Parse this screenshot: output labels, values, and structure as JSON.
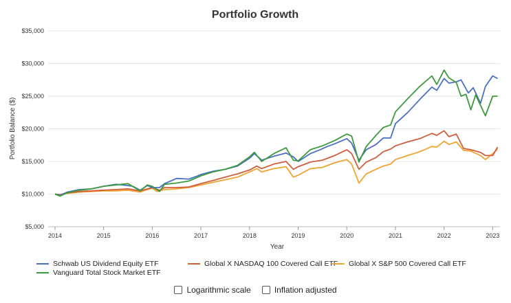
{
  "chart_data": {
    "type": "line",
    "title": "Portfolio Growth",
    "xlabel": "Year",
    "ylabel": "Portfolio Balance ($)",
    "xlim": [
      2014.0,
      2023.15
    ],
    "ylim": [
      5000,
      35000
    ],
    "y_ticks": [
      "$5,000",
      "$10,000",
      "$15,000",
      "$20,000",
      "$25,000",
      "$30,000",
      "$35,000"
    ],
    "x_ticks": [
      "2014",
      "2015",
      "2016",
      "2017",
      "2018",
      "2019",
      "2020",
      "2021",
      "2022",
      "2023"
    ],
    "grid": "horizontal",
    "legend_position": "bottom",
    "series": [
      {
        "name": "Schwab US Dividend Equity ETF",
        "color": "#4a6fc7",
        "x": [
          2014.0,
          2014.1,
          2014.25,
          2014.5,
          2014.75,
          2015.0,
          2015.25,
          2015.4,
          2015.6,
          2015.75,
          2015.9,
          2016.0,
          2016.15,
          2016.25,
          2016.5,
          2016.75,
          2016.9,
          2017.0,
          2017.25,
          2017.5,
          2017.75,
          2018.0,
          2018.1,
          2018.25,
          2018.5,
          2018.75,
          2018.9,
          2019.0,
          2019.25,
          2019.45,
          2019.6,
          2019.75,
          2020.0,
          2020.1,
          2020.25,
          2020.4,
          2020.6,
          2020.75,
          2020.9,
          2021.0,
          2021.25,
          2021.5,
          2021.75,
          2021.85,
          2022.0,
          2022.1,
          2022.25,
          2022.35,
          2022.5,
          2022.6,
          2022.75,
          2022.85,
          2023.0,
          2023.1
        ],
        "y": [
          10000,
          9800,
          10300,
          10700,
          10800,
          11200,
          11500,
          11400,
          11200,
          10600,
          11300,
          11000,
          11000,
          11600,
          12400,
          12300,
          12700,
          13000,
          13500,
          13800,
          14300,
          15500,
          16200,
          15200,
          15800,
          16300,
          15700,
          15000,
          16200,
          16800,
          17300,
          17700,
          18500,
          17800,
          15200,
          16800,
          17600,
          18600,
          18600,
          20800,
          22500,
          24500,
          26400,
          25900,
          27700,
          27000,
          27200,
          27500,
          25500,
          26300,
          23900,
          26500,
          28100,
          27700
        ]
      },
      {
        "name": "Global X NASDAQ 100 Covered Call ETF",
        "color": "#d05d3b",
        "x": [
          2014.0,
          2014.1,
          2014.25,
          2014.5,
          2014.75,
          2015.0,
          2015.25,
          2015.5,
          2015.75,
          2015.9,
          2016.0,
          2016.15,
          2016.25,
          2016.5,
          2016.75,
          2017.0,
          2017.25,
          2017.5,
          2017.75,
          2018.0,
          2018.15,
          2018.25,
          2018.5,
          2018.75,
          2018.9,
          2019.0,
          2019.25,
          2019.5,
          2019.75,
          2020.0,
          2020.1,
          2020.25,
          2020.4,
          2020.6,
          2020.75,
          2020.9,
          2021.0,
          2021.25,
          2021.5,
          2021.75,
          2021.85,
          2022.0,
          2022.1,
          2022.25,
          2022.4,
          2022.55,
          2022.75,
          2022.85,
          2023.0,
          2023.1
        ],
        "y": [
          10000,
          9900,
          10200,
          10400,
          10500,
          10600,
          10700,
          10800,
          10500,
          10800,
          11000,
          10600,
          11000,
          11000,
          11100,
          11600,
          12100,
          12600,
          13100,
          13700,
          14300,
          13900,
          14600,
          15000,
          13800,
          14200,
          14900,
          15200,
          15900,
          16800,
          16200,
          13800,
          14900,
          15600,
          16500,
          16900,
          17400,
          18000,
          18500,
          19300,
          19000,
          19700,
          18800,
          19200,
          17000,
          16800,
          16400,
          15900,
          15900,
          17200
        ]
      },
      {
        "name": "Global X S&P 500 Covered Call ETF",
        "color": "#f0a330",
        "x": [
          2014.0,
          2014.1,
          2014.25,
          2014.5,
          2014.75,
          2015.0,
          2015.25,
          2015.5,
          2015.75,
          2015.9,
          2016.0,
          2016.1,
          2016.25,
          2016.5,
          2016.75,
          2017.0,
          2017.25,
          2017.5,
          2017.75,
          2018.0,
          2018.15,
          2018.25,
          2018.5,
          2018.75,
          2018.9,
          2019.0,
          2019.25,
          2019.5,
          2019.75,
          2020.0,
          2020.1,
          2020.25,
          2020.4,
          2020.6,
          2020.75,
          2020.9,
          2021.0,
          2021.25,
          2021.5,
          2021.75,
          2021.85,
          2022.0,
          2022.1,
          2022.25,
          2022.4,
          2022.55,
          2022.75,
          2022.85,
          2023.0,
          2023.1
        ],
        "y": [
          10000,
          9900,
          10100,
          10300,
          10400,
          10500,
          10500,
          10600,
          10300,
          10700,
          10900,
          10400,
          10700,
          10800,
          11000,
          11400,
          11800,
          12200,
          12600,
          13400,
          13900,
          13400,
          13900,
          14200,
          12600,
          12900,
          13900,
          14100,
          14800,
          15300,
          14600,
          11700,
          13100,
          13800,
          14300,
          14600,
          15300,
          15900,
          16500,
          17300,
          17200,
          18100,
          17600,
          18000,
          16700,
          16600,
          15900,
          15300,
          16200,
          16900
        ]
      },
      {
        "name": "Vanguard Total Stock Market ETF",
        "color": "#3b9a3b",
        "x": [
          2014.0,
          2014.1,
          2014.25,
          2014.5,
          2014.75,
          2015.0,
          2015.25,
          2015.5,
          2015.75,
          2015.9,
          2016.0,
          2016.15,
          2016.25,
          2016.5,
          2016.75,
          2017.0,
          2017.25,
          2017.5,
          2017.75,
          2018.0,
          2018.1,
          2018.25,
          2018.5,
          2018.75,
          2018.9,
          2019.0,
          2019.25,
          2019.5,
          2019.75,
          2020.0,
          2020.1,
          2020.25,
          2020.4,
          2020.6,
          2020.75,
          2020.9,
          2021.0,
          2021.25,
          2021.5,
          2021.75,
          2021.85,
          2022.0,
          2022.1,
          2022.25,
          2022.35,
          2022.45,
          2022.55,
          2022.65,
          2022.85,
          2023.0,
          2023.1
        ],
        "y": [
          10000,
          9700,
          10200,
          10600,
          10800,
          11200,
          11400,
          11600,
          10500,
          11400,
          11200,
          10400,
          11500,
          11700,
          12000,
          12800,
          13400,
          13800,
          14400,
          15700,
          16400,
          15000,
          16200,
          17100,
          15200,
          15100,
          16800,
          17400,
          18200,
          19200,
          18900,
          14900,
          17300,
          19000,
          20200,
          20600,
          22600,
          24600,
          26500,
          28100,
          26800,
          29000,
          27800,
          27100,
          25000,
          25300,
          22900,
          25200,
          22000,
          25000,
          25000
        ]
      }
    ]
  },
  "controls": {
    "log_label": "Logarithmic scale",
    "inflation_label": "Inflation adjusted"
  }
}
